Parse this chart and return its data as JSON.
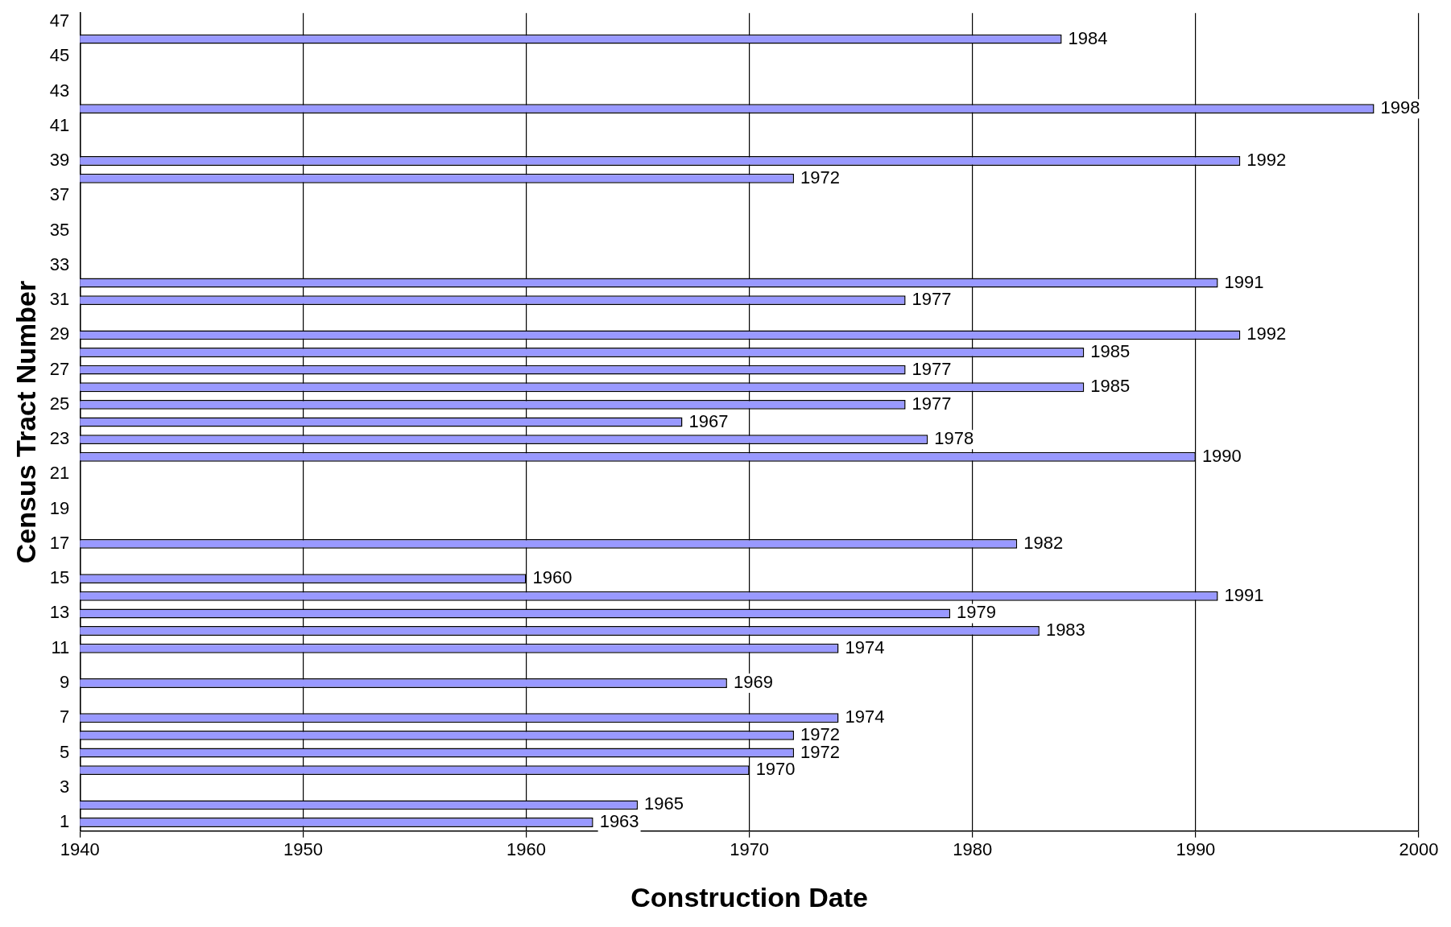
{
  "chart_data": {
    "type": "bar",
    "orientation": "horizontal",
    "xlabel": "Construction Date",
    "ylabel": "Census Tract Number",
    "categories": [
      "47",
      null,
      "45",
      null,
      "43",
      null,
      "41",
      null,
      "39",
      null,
      "37",
      null,
      "35",
      null,
      "33",
      null,
      "31",
      null,
      "29",
      null,
      "27",
      null,
      "25",
      null,
      "23",
      null,
      "21",
      null,
      "19",
      null,
      "17",
      null,
      "15",
      null,
      "13",
      null,
      "11",
      null,
      "9",
      null,
      "7",
      null,
      "5",
      null,
      "3",
      null,
      "1"
    ],
    "values": [
      null,
      1984,
      null,
      null,
      null,
      1998,
      null,
      null,
      1992,
      1972,
      null,
      null,
      null,
      null,
      null,
      1991,
      1977,
      null,
      1992,
      1985,
      1977,
      1985,
      1977,
      1967,
      1978,
      1990,
      null,
      null,
      null,
      null,
      1982,
      null,
      1960,
      1991,
      1979,
      1983,
      1974,
      null,
      1969,
      null,
      1974,
      1972,
      1972,
      1970,
      null,
      1965,
      1963
    ],
    "color": "#9999ff",
    "xlim": [
      1940,
      2000
    ],
    "xticks": [
      1940,
      1950,
      1960,
      1970,
      1980,
      1990,
      2000
    ],
    "grid": "x",
    "legend": false,
    "data_labels": true
  }
}
